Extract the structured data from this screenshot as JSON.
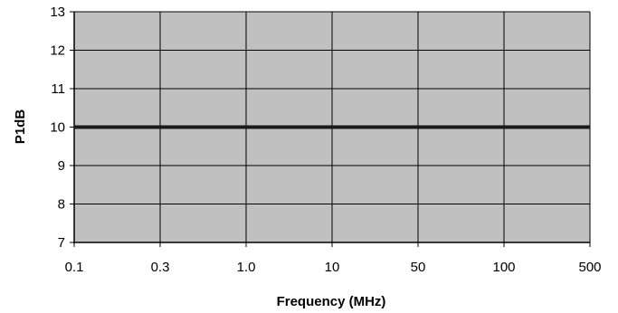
{
  "chart_data": {
    "type": "line",
    "xlabel": "Frequency (MHz)",
    "ylabel": "P1dB",
    "categories": [
      "0.1",
      "0.3",
      "1.0",
      "10",
      "50",
      "100",
      "500"
    ],
    "ylim": [
      7,
      13
    ],
    "yticks": [
      7,
      8,
      9,
      10,
      11,
      12,
      13
    ],
    "grid": true,
    "series": [
      {
        "values": [
          10,
          10,
          10,
          10,
          10,
          10,
          10
        ]
      }
    ],
    "colors": {
      "plot_background": "#c0c0c0",
      "grid": "#000000",
      "line": "#1a1a1a"
    }
  }
}
